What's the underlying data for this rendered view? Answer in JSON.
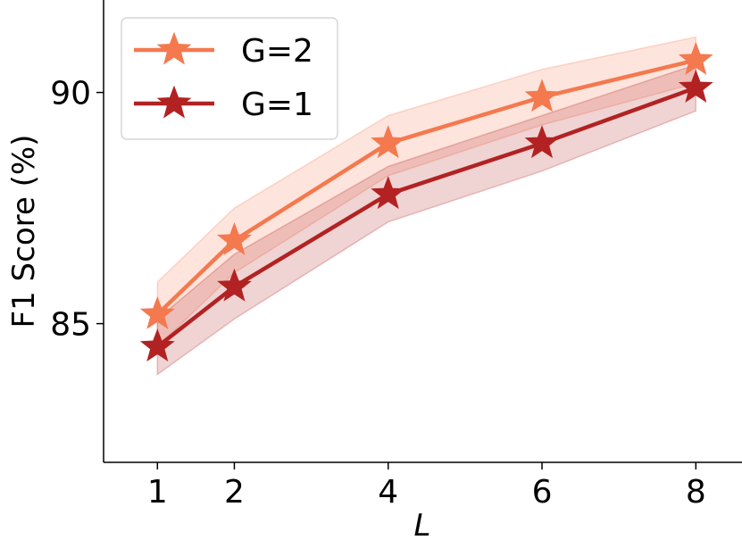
{
  "chart_data": {
    "type": "line",
    "title": "",
    "xlabel": "L",
    "ylabel": "F1 Score (%)",
    "x": [
      1,
      2,
      4,
      6,
      8
    ],
    "xticks": [
      "1",
      "2",
      "4",
      "6",
      "8"
    ],
    "yticks": [
      "85",
      "90"
    ],
    "xlim": [
      0.3,
      8.6
    ],
    "ylim": [
      82.0,
      92.0
    ],
    "legend_position": "top-left",
    "grid": false,
    "series": [
      {
        "name": "G=2",
        "color": "#f4794e",
        "values": [
          85.2,
          86.8,
          88.9,
          89.9,
          90.7
        ],
        "lower": [
          84.5,
          86.1,
          88.2,
          89.3,
          90.2
        ],
        "upper": [
          85.9,
          87.5,
          89.5,
          90.5,
          91.2
        ],
        "marker": "star"
      },
      {
        "name": "G=1",
        "color": "#b22222",
        "values": [
          84.5,
          85.8,
          87.8,
          88.9,
          90.1
        ],
        "lower": [
          83.9,
          85.1,
          87.2,
          88.3,
          89.6
        ],
        "upper": [
          85.1,
          86.5,
          88.4,
          89.5,
          90.6
        ],
        "marker": "star"
      }
    ]
  }
}
